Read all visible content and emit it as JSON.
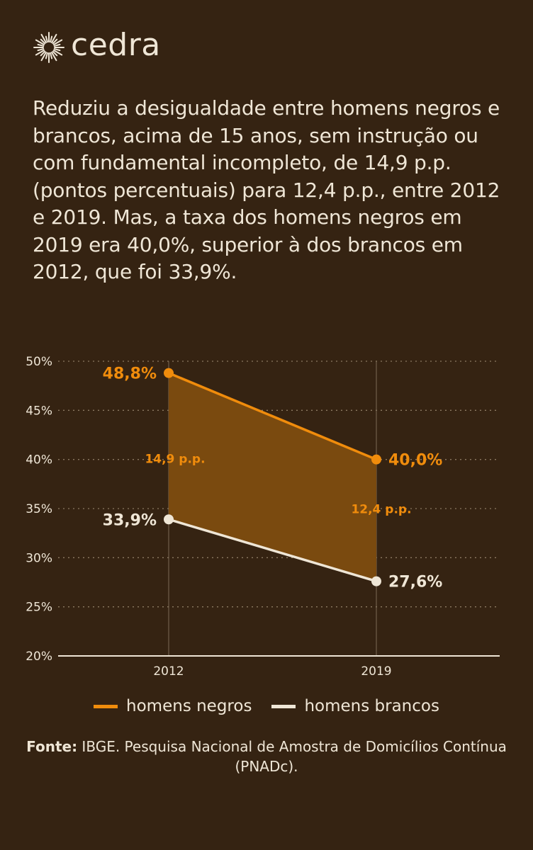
{
  "brand": {
    "name": "cedra"
  },
  "intro": "Reduziu a desigualdade entre homens negros e brancos, acima de 15 anos, sem instrução ou com fundamental incompleto, de 14,9 p.p. (pontos percentuais) para 12,4 p.p., entre 2012 e 2019. Mas, a taxa dos homens negros em 2019 era 40,0%, superior à dos brancos em 2012, que foi 33,9%.",
  "colors": {
    "background": "#352312",
    "negros": "#f08c0c",
    "brancos": "#efe6d6",
    "band": "#7a4a0f",
    "text": "#efe6d6",
    "grid": "#8c7a62"
  },
  "chart_data": {
    "type": "line",
    "x": [
      "2012",
      "2019"
    ],
    "ylim": [
      20,
      50
    ],
    "y_ticks": [
      "20%",
      "25%",
      "30%",
      "35%",
      "40%",
      "45%",
      "50%"
    ],
    "grid": "horizontal dotted",
    "legend": "bottom",
    "series": [
      {
        "name": "homens negros",
        "color": "#f08c0c",
        "values": [
          48.8,
          40.0
        ],
        "labels": [
          "48,8%",
          "40,0%"
        ]
      },
      {
        "name": "homens brancos",
        "color": "#efe6d6",
        "values": [
          33.9,
          27.6
        ],
        "labels": [
          "33,9%",
          "27,6%"
        ]
      }
    ],
    "gap_annotations": [
      "14,9 p.p.",
      "12,4 p.p."
    ]
  },
  "source": {
    "label": "Fonte:",
    "text": "IBGE. Pesquisa Nacional de Amostra de Domicílios Contínua (PNADc)."
  }
}
